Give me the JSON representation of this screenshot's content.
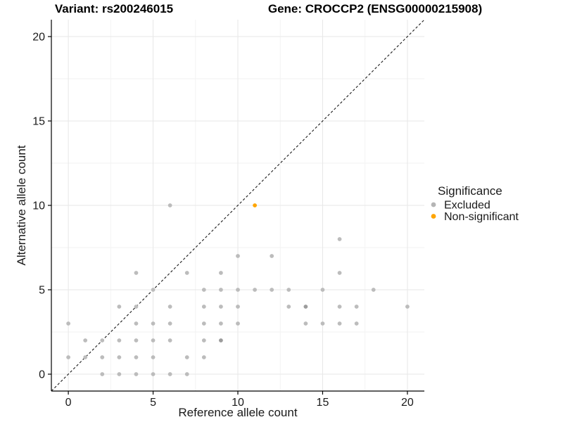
{
  "chart_data": {
    "type": "scatter",
    "titles": {
      "variant": "Variant: rs200246015",
      "gene": "Gene: CROCCP2 (ENSG00000215908)"
    },
    "xlabel": "Reference allele count",
    "ylabel": "Alternative allele count",
    "xlim": [
      -1,
      21
    ],
    "ylim": [
      -1,
      21
    ],
    "xticks": [
      0,
      5,
      10,
      15,
      20
    ],
    "yticks": [
      0,
      5,
      10,
      15,
      20
    ],
    "minor_xticks": [
      2.5,
      7.5,
      12.5,
      17.5
    ],
    "minor_yticks": [
      2.5,
      7.5,
      12.5,
      17.5
    ],
    "grid": "major+minor",
    "identity_line": {
      "style": "dashed",
      "slope": 1,
      "intercept": 0,
      "color": "#1a1a1a"
    },
    "legend": {
      "title": "Significance",
      "position": "right",
      "entries": [
        {
          "label": "Excluded",
          "color": "#B5B5B5"
        },
        {
          "label": "Non-significant",
          "color": "#FFA500"
        }
      ]
    },
    "series": [
      {
        "name": "Excluded",
        "color": "#BCBCBC",
        "points": [
          [
            2,
            0
          ],
          [
            3,
            0
          ],
          [
            4,
            0
          ],
          [
            5,
            0
          ],
          [
            6,
            0
          ],
          [
            7,
            0
          ],
          [
            0,
            1
          ],
          [
            1,
            1
          ],
          [
            2,
            1
          ],
          [
            3,
            1
          ],
          [
            4,
            1
          ],
          [
            5,
            1
          ],
          [
            7,
            1
          ],
          [
            8,
            1
          ],
          [
            1,
            2
          ],
          [
            2,
            2
          ],
          [
            3,
            2
          ],
          [
            4,
            2
          ],
          [
            5,
            2
          ],
          [
            6,
            2
          ],
          [
            8,
            2
          ],
          [
            9,
            2
          ],
          [
            0,
            3
          ],
          [
            4,
            3
          ],
          [
            5,
            3
          ],
          [
            6,
            3
          ],
          [
            8,
            3
          ],
          [
            9,
            3
          ],
          [
            10,
            3
          ],
          [
            14,
            3
          ],
          [
            15,
            3
          ],
          [
            16,
            3
          ],
          [
            17,
            3
          ],
          [
            3,
            4
          ],
          [
            4,
            4
          ],
          [
            6,
            4
          ],
          [
            8,
            4
          ],
          [
            9,
            4
          ],
          [
            10,
            4
          ],
          [
            13,
            4
          ],
          [
            14,
            4
          ],
          [
            16,
            4
          ],
          [
            17,
            4
          ],
          [
            20,
            4
          ],
          [
            5,
            5
          ],
          [
            8,
            5
          ],
          [
            9,
            5
          ],
          [
            10,
            5
          ],
          [
            11,
            5
          ],
          [
            12,
            5
          ],
          [
            13,
            5
          ],
          [
            15,
            5
          ],
          [
            18,
            5
          ],
          [
            4,
            6
          ],
          [
            7,
            6
          ],
          [
            9,
            6
          ],
          [
            16,
            6
          ],
          [
            10,
            7
          ],
          [
            12,
            7
          ],
          [
            16,
            8
          ],
          [
            6,
            10
          ]
        ]
      },
      {
        "name": "Non-significant",
        "color": "#FFA500",
        "points": [
          [
            11,
            10
          ]
        ]
      }
    ],
    "overplotted_points": [
      [
        9,
        2
      ],
      [
        14,
        4
      ]
    ],
    "overplot_color": "#9C9C9C",
    "colors": {
      "grid_major": "#E7E7E7",
      "grid_minor": "#F2F2F2",
      "axis": "#000000"
    }
  }
}
